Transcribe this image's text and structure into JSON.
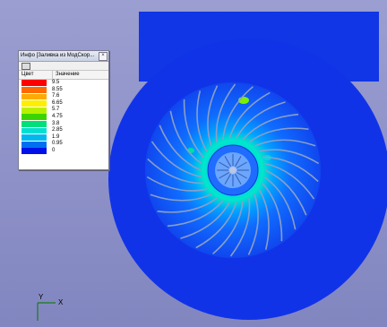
{
  "info_panel": {
    "title": "Инфо [Заливка из МодСкор...",
    "close_glyph": "×",
    "col_color": "Цвет",
    "col_value": "Значение",
    "legend": [
      {
        "color": "#ff0000",
        "value": "9.5"
      },
      {
        "color": "#ff6a00",
        "value": "8.55"
      },
      {
        "color": "#ffaa00",
        "value": "7.6"
      },
      {
        "color": "#ffee00",
        "value": "6.65"
      },
      {
        "color": "#b8f000",
        "value": "5.7"
      },
      {
        "color": "#3cd400",
        "value": "4.75"
      },
      {
        "color": "#00e07a",
        "value": "3.8"
      },
      {
        "color": "#00e0d0",
        "value": "2.85"
      },
      {
        "color": "#00b8f0",
        "value": "1.9"
      },
      {
        "color": "#0070f0",
        "value": "0.95"
      },
      {
        "color": "#0010e8",
        "value": "0"
      }
    ]
  },
  "axes": {
    "y_label": "Y",
    "x_label": "X"
  },
  "colors": {
    "background": "#8f93c8",
    "volute": "#1036e6",
    "axis": "#1a7a1a"
  }
}
